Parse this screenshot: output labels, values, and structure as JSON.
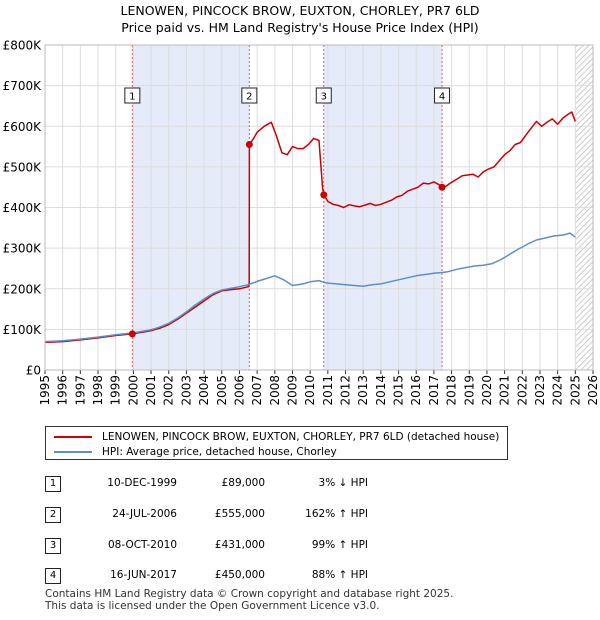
{
  "title_line1": "LENOWEN, PINCOCK BROW, EUXTON, CHORLEY, PR7 6LD",
  "title_line2": "Price paid vs. HM Land Registry's House Price Index (HPI)",
  "colors": {
    "property": "#cc0000",
    "hpi": "#5b8fcc",
    "shade": "#e6ebfa",
    "hatch": "#bbbbbb",
    "grid": "#dddddd",
    "vline": "#e05a5a"
  },
  "legend": {
    "property": "LENOWEN, PINCOCK BROW, EUXTON, CHORLEY, PR7 6LD (detached house)",
    "hpi": "HPI: Average price, detached house, Chorley"
  },
  "sales": [
    {
      "num": "1",
      "date": "10-DEC-1999",
      "price": "£89,000",
      "hpi": "3% ↓ HPI"
    },
    {
      "num": "2",
      "date": "24-JUL-2006",
      "price": "£555,000",
      "hpi": "162% ↑ HPI"
    },
    {
      "num": "3",
      "date": "08-OCT-2010",
      "price": "£431,000",
      "hpi": "99% ↑ HPI"
    },
    {
      "num": "4",
      "date": "16-JUN-2017",
      "price": "£450,000",
      "hpi": "88% ↑ HPI"
    }
  ],
  "footer_line1": "Contains HM Land Registry data © Crown copyright and database right 2025.",
  "footer_line2": "This data is licensed under the Open Government Licence v3.0.",
  "chart_data": {
    "type": "line",
    "title": "LENOWEN, PINCOCK BROW, EUXTON, CHORLEY, PR7 6LD — Price paid vs. HM Land Registry's House Price Index (HPI)",
    "xlabel": "",
    "ylabel": "",
    "xlim": [
      1995,
      2026
    ],
    "ylim": [
      0,
      800000
    ],
    "y_ticks": [
      0,
      100000,
      200000,
      300000,
      400000,
      500000,
      600000,
      700000,
      800000
    ],
    "y_tick_labels": [
      "£0",
      "£100K",
      "£200K",
      "£300K",
      "£400K",
      "£500K",
      "£600K",
      "£700K",
      "£800K"
    ],
    "x_ticks": [
      "1995",
      "1996",
      "1997",
      "1998",
      "1999",
      "2000",
      "2001",
      "2002",
      "2003",
      "2004",
      "2005",
      "2006",
      "2007",
      "2008",
      "2009",
      "2010",
      "2011",
      "2012",
      "2013",
      "2014",
      "2015",
      "2016",
      "2017",
      "2018",
      "2019",
      "2020",
      "2021",
      "2022",
      "2023",
      "2024",
      "2025",
      "2026"
    ],
    "shaded_periods": [
      [
        1999.94,
        2006.56
      ],
      [
        2010.77,
        2017.46
      ]
    ],
    "hatched_from": 2025.0,
    "sale_markers": [
      {
        "label": "1",
        "x": 1999.94,
        "y": 89000
      },
      {
        "label": "2",
        "x": 2006.56,
        "y": 555000
      },
      {
        "label": "3",
        "x": 2010.77,
        "y": 431000
      },
      {
        "label": "4",
        "x": 2017.46,
        "y": 450000
      }
    ],
    "series": [
      {
        "name": "LENOWEN, PINCOCK BROW, EUXTON, CHORLEY, PR7 6LD (detached house)",
        "color": "#cc0000",
        "x": [
          1995,
          1996,
          1997,
          1998,
          1999,
          1999.94,
          2000.5,
          2001,
          2001.5,
          2002,
          2002.5,
          2003,
          2003.5,
          2004,
          2004.5,
          2005,
          2005.5,
          2006,
          2006.5,
          2006.55,
          2006.56,
          2006.8,
          2007,
          2007.4,
          2007.8,
          2008.1,
          2008.4,
          2008.7,
          2009.0,
          2009.3,
          2009.6,
          2009.9,
          2010.2,
          2010.5,
          2010.7,
          2010.77,
          2011.0,
          2011.3,
          2011.6,
          2011.9,
          2012.2,
          2012.5,
          2012.8,
          2013.1,
          2013.4,
          2013.7,
          2014.0,
          2014.3,
          2014.6,
          2014.9,
          2015.2,
          2015.5,
          2015.8,
          2016.1,
          2016.4,
          2016.7,
          2017.0,
          2017.3,
          2017.46,
          2017.7,
          2018.0,
          2018.3,
          2018.6,
          2018.9,
          2019.2,
          2019.5,
          2019.8,
          2020.1,
          2020.4,
          2020.7,
          2021.0,
          2021.3,
          2021.6,
          2021.9,
          2022.2,
          2022.5,
          2022.8,
          2023.1,
          2023.4,
          2023.7,
          2024.0,
          2024.3,
          2024.6,
          2024.8,
          2025.0
        ],
        "y": [
          68000,
          70000,
          74000,
          79000,
          85000,
          89000,
          93000,
          97000,
          103000,
          112000,
          125000,
          140000,
          155000,
          170000,
          185000,
          195000,
          198000,
          200000,
          205000,
          215000,
          555000,
          570000,
          585000,
          600000,
          610000,
          575000,
          535000,
          530000,
          550000,
          545000,
          545000,
          555000,
          570000,
          565000,
          450000,
          431000,
          415000,
          408000,
          405000,
          400000,
          407000,
          404000,
          402000,
          406000,
          410000,
          405000,
          408000,
          413000,
          418000,
          426000,
          430000,
          440000,
          445000,
          450000,
          460000,
          458000,
          463000,
          456000,
          450000,
          453000,
          462000,
          470000,
          478000,
          480000,
          482000,
          475000,
          488000,
          495000,
          500000,
          515000,
          530000,
          540000,
          555000,
          560000,
          578000,
          595000,
          612000,
          600000,
          610000,
          618000,
          605000,
          620000,
          630000,
          635000,
          612000
        ]
      },
      {
        "name": "HPI: Average price, detached house, Chorley",
        "color": "#5b8fcc",
        "x": [
          1995,
          1996,
          1997,
          1998,
          1999,
          1999.94,
          2000.5,
          2001,
          2001.5,
          2002,
          2002.5,
          2003,
          2003.5,
          2004,
          2004.5,
          2005,
          2005.5,
          2006,
          2006.5,
          2007,
          2007.5,
          2008,
          2008.5,
          2009,
          2009.3,
          2009.6,
          2010,
          2010.5,
          2010.77,
          2011,
          2011.5,
          2012,
          2012.5,
          2013,
          2013.5,
          2014,
          2014.5,
          2015,
          2015.5,
          2016,
          2016.5,
          2017,
          2017.46,
          2017.8,
          2018.3,
          2018.8,
          2019.3,
          2019.8,
          2020.3,
          2020.8,
          2021.3,
          2021.8,
          2022.3,
          2022.8,
          2023.3,
          2023.8,
          2024.3,
          2024.7,
          2025.0
        ],
        "y": [
          70000,
          72000,
          76000,
          81000,
          87000,
          91000,
          95000,
          99000,
          106000,
          115000,
          128000,
          143000,
          160000,
          175000,
          188000,
          197000,
          201000,
          205000,
          210000,
          218000,
          225000,
          232000,
          222000,
          208000,
          210000,
          212000,
          217000,
          220000,
          216000,
          214000,
          212000,
          210000,
          208000,
          206000,
          210000,
          212000,
          217000,
          222000,
          227000,
          232000,
          235000,
          238000,
          240000,
          242000,
          248000,
          252000,
          256000,
          258000,
          262000,
          272000,
          285000,
          298000,
          310000,
          320000,
          325000,
          330000,
          332000,
          337000,
          327000
        ]
      }
    ]
  }
}
